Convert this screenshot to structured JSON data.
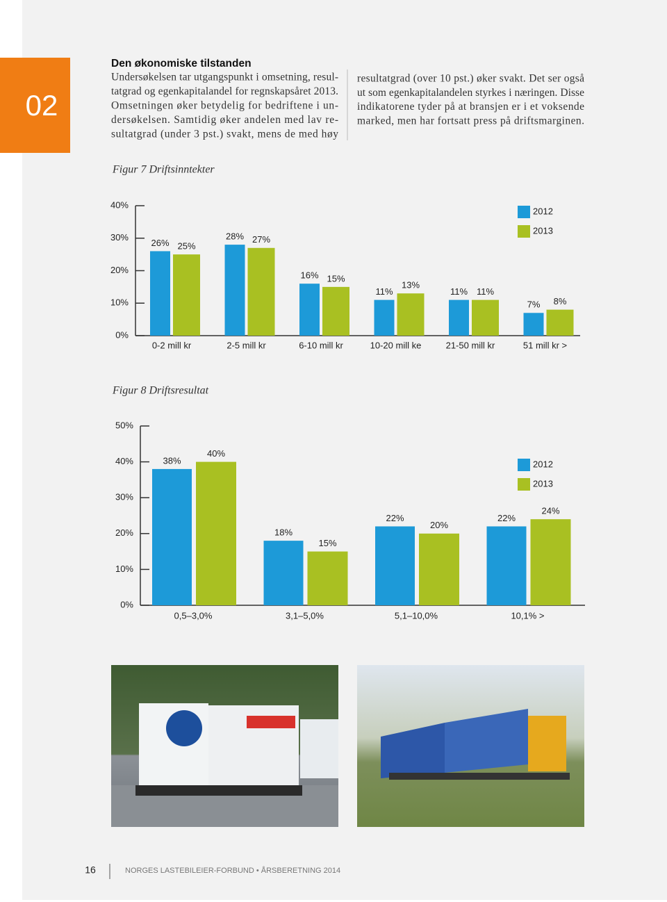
{
  "section_number": "02",
  "heading": "Den økonomiske tilstanden",
  "body": {
    "column1": [
      "Undersøkelsen tar utgangspunkt i omsetning, resul-",
      "tatgrad og egenkapitalandel for regnskapsåret 2013.",
      "Omsetningen øker betydelig for bedriftene i un-",
      "dersøkelsen. Samtidig øker andelen med lav re-",
      "sultatgrad (under 3 pst.) svakt, mens de med høy"
    ],
    "column2": [
      "resultatgrad (over 10 pst.) øker svakt. Det ser også",
      "ut som egenkapitalandelen styrkes i næringen. Disse",
      "indikatorene tyder på at bransjen er i et voksende",
      "marked, men har fortsatt press på driftsmarginen."
    ]
  },
  "chart_data": [
    {
      "type": "bar",
      "title": "Figur 7  Driftsinntekter",
      "categories": [
        "0-2 mill kr",
        "2-5 mill kr",
        "6-10 mill kr",
        "10-20 mill ke",
        "21-50 mill kr",
        "51 mill kr >"
      ],
      "series": [
        {
          "name": "2012",
          "color": "#1d9ad8",
          "values": [
            26,
            28,
            16,
            11,
            11,
            7
          ],
          "value_labels": [
            "26%",
            "28%",
            "16%",
            "11%",
            "11%",
            "7%"
          ]
        },
        {
          "name": "2013",
          "color": "#a9c022",
          "values": [
            25,
            27,
            15,
            13,
            11,
            8
          ],
          "value_labels": [
            "25%",
            "27%",
            "15%",
            "13%",
            "11%",
            "8%"
          ]
        }
      ],
      "ylim": [
        0,
        40
      ],
      "yticks": [
        {
          "value": 0,
          "label": "0%"
        },
        {
          "value": 10,
          "label": "10%"
        },
        {
          "value": 20,
          "label": "20%"
        },
        {
          "value": 30,
          "label": "30%"
        },
        {
          "value": 40,
          "label": "40%"
        }
      ],
      "legend": "top-right"
    },
    {
      "type": "bar",
      "title": "Figur 8 Driftsresultat",
      "categories": [
        "0,5–3,0%",
        "3,1–5,0%",
        "5,1–10,0%",
        "10,1% >"
      ],
      "series": [
        {
          "name": "2012",
          "color": "#1d9ad8",
          "values": [
            38,
            18,
            22,
            22
          ],
          "value_labels": [
            "38%",
            "18%",
            "22%",
            "22%"
          ]
        },
        {
          "name": "2013",
          "color": "#a9c022",
          "values": [
            40,
            15,
            20,
            24
          ],
          "value_labels": [
            "40%",
            "15%",
            "20%",
            "24%"
          ]
        }
      ],
      "ylim": [
        0,
        50
      ],
      "yticks": [
        {
          "value": 0,
          "label": "0%"
        },
        {
          "value": 10,
          "label": "10%"
        },
        {
          "value": 20,
          "label": "20%"
        },
        {
          "value": 30,
          "label": "30%"
        },
        {
          "value": 40,
          "label": "40%"
        },
        {
          "value": 50,
          "label": "50%"
        }
      ],
      "legend": "top-right"
    }
  ],
  "footer": {
    "page": "16",
    "text": "NORGES LASTEBILEIER-FORBUND • ÅRSBERETNING 2014"
  }
}
